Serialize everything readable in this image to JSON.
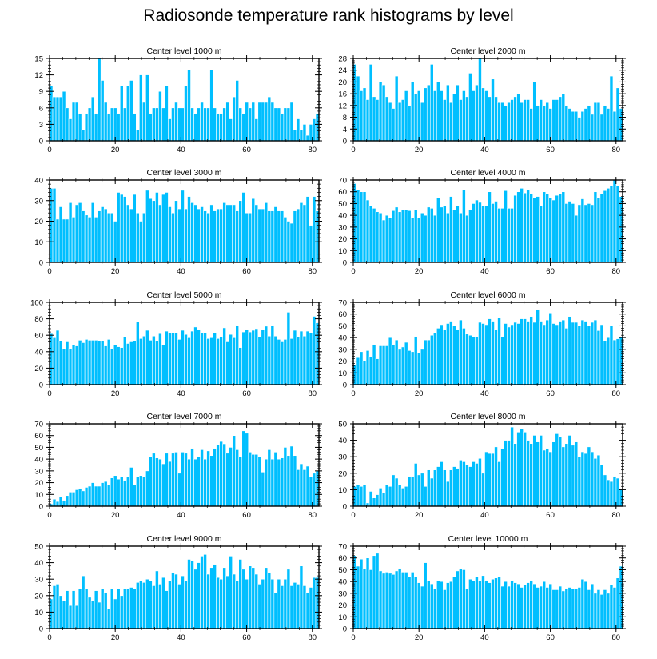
{
  "title": "Radiosonde temperature rank histograms by level",
  "colors": {
    "bar": "#00bfff",
    "bar_edge": "#ffffff",
    "axis": "#000000"
  },
  "chart_data": [
    {
      "type": "bar",
      "title": "Center level 1000 m",
      "xlim": [
        0,
        82
      ],
      "ylim": [
        0,
        15
      ],
      "xticks": [
        0,
        20,
        40,
        60,
        80
      ],
      "yticks": [
        0,
        3,
        6,
        9,
        12,
        15
      ],
      "values": [
        10,
        8,
        8,
        8,
        9,
        6,
        4,
        7,
        7,
        5,
        2,
        5,
        6,
        8,
        5,
        15,
        11,
        7,
        5,
        6,
        6,
        5,
        10,
        6,
        10,
        11,
        5,
        2,
        12,
        7,
        12,
        5,
        6,
        6,
        9,
        6,
        10,
        4,
        6,
        7,
        6,
        6,
        10,
        13,
        6,
        5,
        6,
        7,
        6,
        6,
        13,
        6,
        5,
        5,
        6,
        7,
        4,
        8,
        11,
        6,
        5,
        7,
        6,
        7,
        4,
        7,
        7,
        7,
        8,
        7,
        6,
        6,
        5,
        6,
        6,
        7,
        2,
        4,
        2,
        3,
        1,
        3,
        4,
        5
      ]
    },
    {
      "type": "bar",
      "title": "Center level 2000 m",
      "xlim": [
        0,
        82
      ],
      "ylim": [
        0,
        28
      ],
      "xticks": [
        0,
        20,
        40,
        60,
        80
      ],
      "yticks": [
        0,
        4,
        8,
        12,
        16,
        20,
        24,
        28
      ],
      "values": [
        26,
        22,
        17,
        18,
        14,
        26,
        15,
        14,
        20,
        19,
        15,
        13,
        11,
        22,
        13,
        14,
        17,
        12,
        20,
        16,
        17,
        13,
        18,
        19,
        26,
        17,
        20,
        17,
        14,
        19,
        13,
        16,
        19,
        14,
        17,
        15,
        23,
        17,
        19,
        28,
        18,
        17,
        15,
        21,
        15,
        13,
        13,
        12,
        13,
        14,
        15,
        16,
        13,
        14,
        14,
        11,
        20,
        12,
        14,
        12,
        13,
        11,
        14,
        14,
        15,
        16,
        12,
        11,
        10,
        10,
        8,
        10,
        11,
        12,
        9,
        13,
        13,
        9,
        12,
        11,
        22,
        10,
        18,
        11
      ]
    },
    {
      "type": "bar",
      "title": "Center level 3000 m",
      "xlim": [
        0,
        82
      ],
      "ylim": [
        0,
        40
      ],
      "xticks": [
        0,
        20,
        40,
        60,
        80
      ],
      "yticks": [
        0,
        10,
        20,
        30,
        40
      ],
      "values": [
        36,
        36,
        21,
        27,
        21,
        21,
        29,
        22,
        28,
        29,
        25,
        23,
        22,
        29,
        22,
        25,
        27,
        26,
        24,
        24,
        20,
        34,
        33,
        32,
        28,
        26,
        33,
        24,
        20,
        24,
        35,
        31,
        30,
        34,
        28,
        33,
        34,
        27,
        24,
        30,
        26,
        35,
        26,
        32,
        29,
        28,
        26,
        27,
        25,
        24,
        28,
        25,
        26,
        26,
        29,
        28,
        28,
        28,
        25,
        30,
        34,
        24,
        24,
        31,
        28,
        26,
        26,
        29,
        25,
        25,
        27,
        25,
        25,
        22,
        20,
        19,
        25,
        26,
        29,
        28,
        32,
        18,
        32,
        25
      ]
    },
    {
      "type": "bar",
      "title": "Center level 4000 m",
      "xlim": [
        0,
        82
      ],
      "ylim": [
        0,
        70
      ],
      "xticks": [
        0,
        20,
        40,
        60,
        80
      ],
      "yticks": [
        0,
        10,
        20,
        30,
        40,
        50,
        60,
        70
      ],
      "values": [
        67,
        62,
        60,
        60,
        53,
        48,
        46,
        43,
        42,
        36,
        40,
        38,
        44,
        47,
        43,
        45,
        45,
        44,
        38,
        45,
        38,
        42,
        40,
        47,
        46,
        40,
        55,
        47,
        48,
        42,
        56,
        45,
        48,
        42,
        62,
        40,
        45,
        50,
        53,
        51,
        48,
        48,
        60,
        50,
        52,
        46,
        46,
        61,
        46,
        46,
        57,
        60,
        63,
        59,
        62,
        58,
        55,
        56,
        48,
        60,
        58,
        55,
        53,
        57,
        58,
        60,
        50,
        52,
        50,
        40,
        49,
        54,
        49,
        50,
        49,
        60,
        55,
        58,
        61,
        63,
        65,
        70,
        65,
        56
      ]
    },
    {
      "type": "bar",
      "title": "Center level 5000 m",
      "xlim": [
        0,
        82
      ],
      "ylim": [
        0,
        100
      ],
      "xticks": [
        0,
        20,
        40,
        60,
        80
      ],
      "yticks": [
        0,
        20,
        40,
        60,
        80,
        100
      ],
      "values": [
        62,
        57,
        66,
        53,
        43,
        52,
        44,
        48,
        47,
        54,
        51,
        55,
        54,
        54,
        54,
        53,
        53,
        47,
        55,
        44,
        48,
        46,
        45,
        58,
        50,
        52,
        53,
        76,
        56,
        59,
        66,
        54,
        59,
        53,
        62,
        48,
        65,
        63,
        63,
        63,
        55,
        66,
        61,
        57,
        65,
        70,
        67,
        63,
        63,
        56,
        57,
        63,
        56,
        58,
        69,
        52,
        61,
        57,
        72,
        45,
        64,
        67,
        64,
        66,
        68,
        58,
        67,
        71,
        59,
        72,
        59,
        55,
        52,
        55,
        88,
        56,
        66,
        58,
        65,
        59,
        65,
        63,
        83,
        75
      ]
    },
    {
      "type": "bar",
      "title": "Center level 6000 m",
      "xlim": [
        0,
        82
      ],
      "ylim": [
        0,
        70
      ],
      "xticks": [
        0,
        20,
        40,
        60,
        80
      ],
      "yticks": [
        0,
        10,
        20,
        30,
        40,
        50,
        60,
        70
      ],
      "values": [
        17,
        23,
        28,
        20,
        29,
        24,
        34,
        22,
        33,
        33,
        33,
        40,
        34,
        38,
        30,
        32,
        36,
        29,
        28,
        41,
        27,
        30,
        38,
        38,
        42,
        44,
        48,
        51,
        47,
        52,
        54,
        50,
        47,
        55,
        48,
        43,
        42,
        41,
        41,
        53,
        52,
        51,
        56,
        54,
        47,
        57,
        41,
        52,
        49,
        51,
        53,
        52,
        56,
        56,
        54,
        58,
        53,
        64,
        54,
        51,
        55,
        61,
        52,
        51,
        54,
        55,
        48,
        58,
        53,
        53,
        50,
        55,
        54,
        50,
        53,
        55,
        46,
        51,
        37,
        40,
        50,
        38,
        39,
        40
      ]
    },
    {
      "type": "bar",
      "title": "Center level 7000 m",
      "xlim": [
        0,
        82
      ],
      "ylim": [
        0,
        70
      ],
      "xticks": [
        0,
        20,
        40,
        60,
        80
      ],
      "yticks": [
        0,
        10,
        20,
        30,
        40,
        50,
        60,
        70
      ],
      "values": [
        2,
        6,
        4,
        8,
        5,
        9,
        12,
        12,
        14,
        15,
        13,
        16,
        17,
        20,
        17,
        17,
        20,
        21,
        18,
        24,
        26,
        23,
        25,
        22,
        25,
        33,
        18,
        25,
        26,
        25,
        30,
        42,
        45,
        41,
        40,
        36,
        45,
        38,
        45,
        46,
        28,
        46,
        45,
        40,
        49,
        40,
        42,
        48,
        40,
        47,
        43,
        49,
        52,
        55,
        53,
        45,
        50,
        60,
        48,
        42,
        64,
        62,
        46,
        44,
        44,
        42,
        29,
        40,
        48,
        40,
        46,
        40,
        41,
        50,
        43,
        51,
        43,
        31,
        36,
        31,
        34,
        25,
        28,
        30
      ]
    },
    {
      "type": "bar",
      "title": "Center level 8000 m",
      "xlim": [
        0,
        82
      ],
      "ylim": [
        0,
        50
      ],
      "xticks": [
        0,
        20,
        40,
        60,
        80
      ],
      "yticks": [
        0,
        10,
        20,
        30,
        40,
        50
      ],
      "values": [
        12,
        13,
        12,
        13,
        2,
        9,
        5,
        7,
        11,
        8,
        13,
        12,
        19,
        17,
        13,
        11,
        12,
        18,
        18,
        26,
        19,
        20,
        12,
        22,
        17,
        22,
        24,
        27,
        22,
        15,
        22,
        24,
        23,
        28,
        27,
        25,
        24,
        27,
        26,
        29,
        20,
        33,
        32,
        32,
        36,
        27,
        35,
        40,
        40,
        48,
        38,
        45,
        47,
        45,
        40,
        38,
        43,
        39,
        43,
        34,
        35,
        33,
        39,
        44,
        42,
        36,
        38,
        43,
        37,
        39,
        30,
        33,
        32,
        36,
        33,
        29,
        31,
        25,
        19,
        16,
        15,
        18,
        17,
        10
      ]
    },
    {
      "type": "bar",
      "title": "Center level 9000 m",
      "xlim": [
        0,
        82
      ],
      "ylim": [
        0,
        50
      ],
      "xticks": [
        0,
        20,
        40,
        60,
        80
      ],
      "yticks": [
        0,
        10,
        20,
        30,
        40,
        50
      ],
      "values": [
        18,
        26,
        27,
        20,
        17,
        23,
        14,
        23,
        14,
        24,
        32,
        24,
        19,
        17,
        23,
        16,
        24,
        22,
        12,
        24,
        18,
        24,
        20,
        24,
        24,
        25,
        24,
        28,
        29,
        28,
        30,
        29,
        26,
        35,
        27,
        31,
        23,
        29,
        34,
        33,
        27,
        32,
        29,
        42,
        41,
        36,
        40,
        44,
        45,
        33,
        37,
        39,
        31,
        30,
        37,
        32,
        44,
        33,
        29,
        42,
        36,
        30,
        38,
        37,
        33,
        27,
        30,
        37,
        34,
        30,
        22,
        30,
        26,
        30,
        36,
        26,
        28,
        27,
        38,
        26,
        22,
        25,
        31,
        31
      ]
    },
    {
      "type": "bar",
      "title": "Center level 10000 m",
      "xlim": [
        0,
        82
      ],
      "ylim": [
        0,
        70
      ],
      "xticks": [
        0,
        20,
        40,
        60,
        80
      ],
      "yticks": [
        0,
        10,
        20,
        30,
        40,
        50,
        60,
        70
      ],
      "values": [
        62,
        53,
        59,
        51,
        60,
        50,
        62,
        64,
        49,
        47,
        48,
        47,
        46,
        49,
        51,
        48,
        48,
        44,
        48,
        44,
        39,
        36,
        56,
        41,
        38,
        34,
        41,
        40,
        33,
        39,
        40,
        44,
        49,
        51,
        50,
        34,
        42,
        41,
        44,
        41,
        45,
        41,
        39,
        42,
        43,
        44,
        36,
        40,
        36,
        41,
        39,
        38,
        35,
        37,
        39,
        41,
        38,
        35,
        36,
        40,
        35,
        38,
        33,
        33,
        36,
        32,
        34,
        35,
        34,
        34,
        35,
        42,
        40,
        33,
        38,
        30,
        33,
        29,
        33,
        30,
        37,
        35,
        43,
        53
      ]
    }
  ]
}
